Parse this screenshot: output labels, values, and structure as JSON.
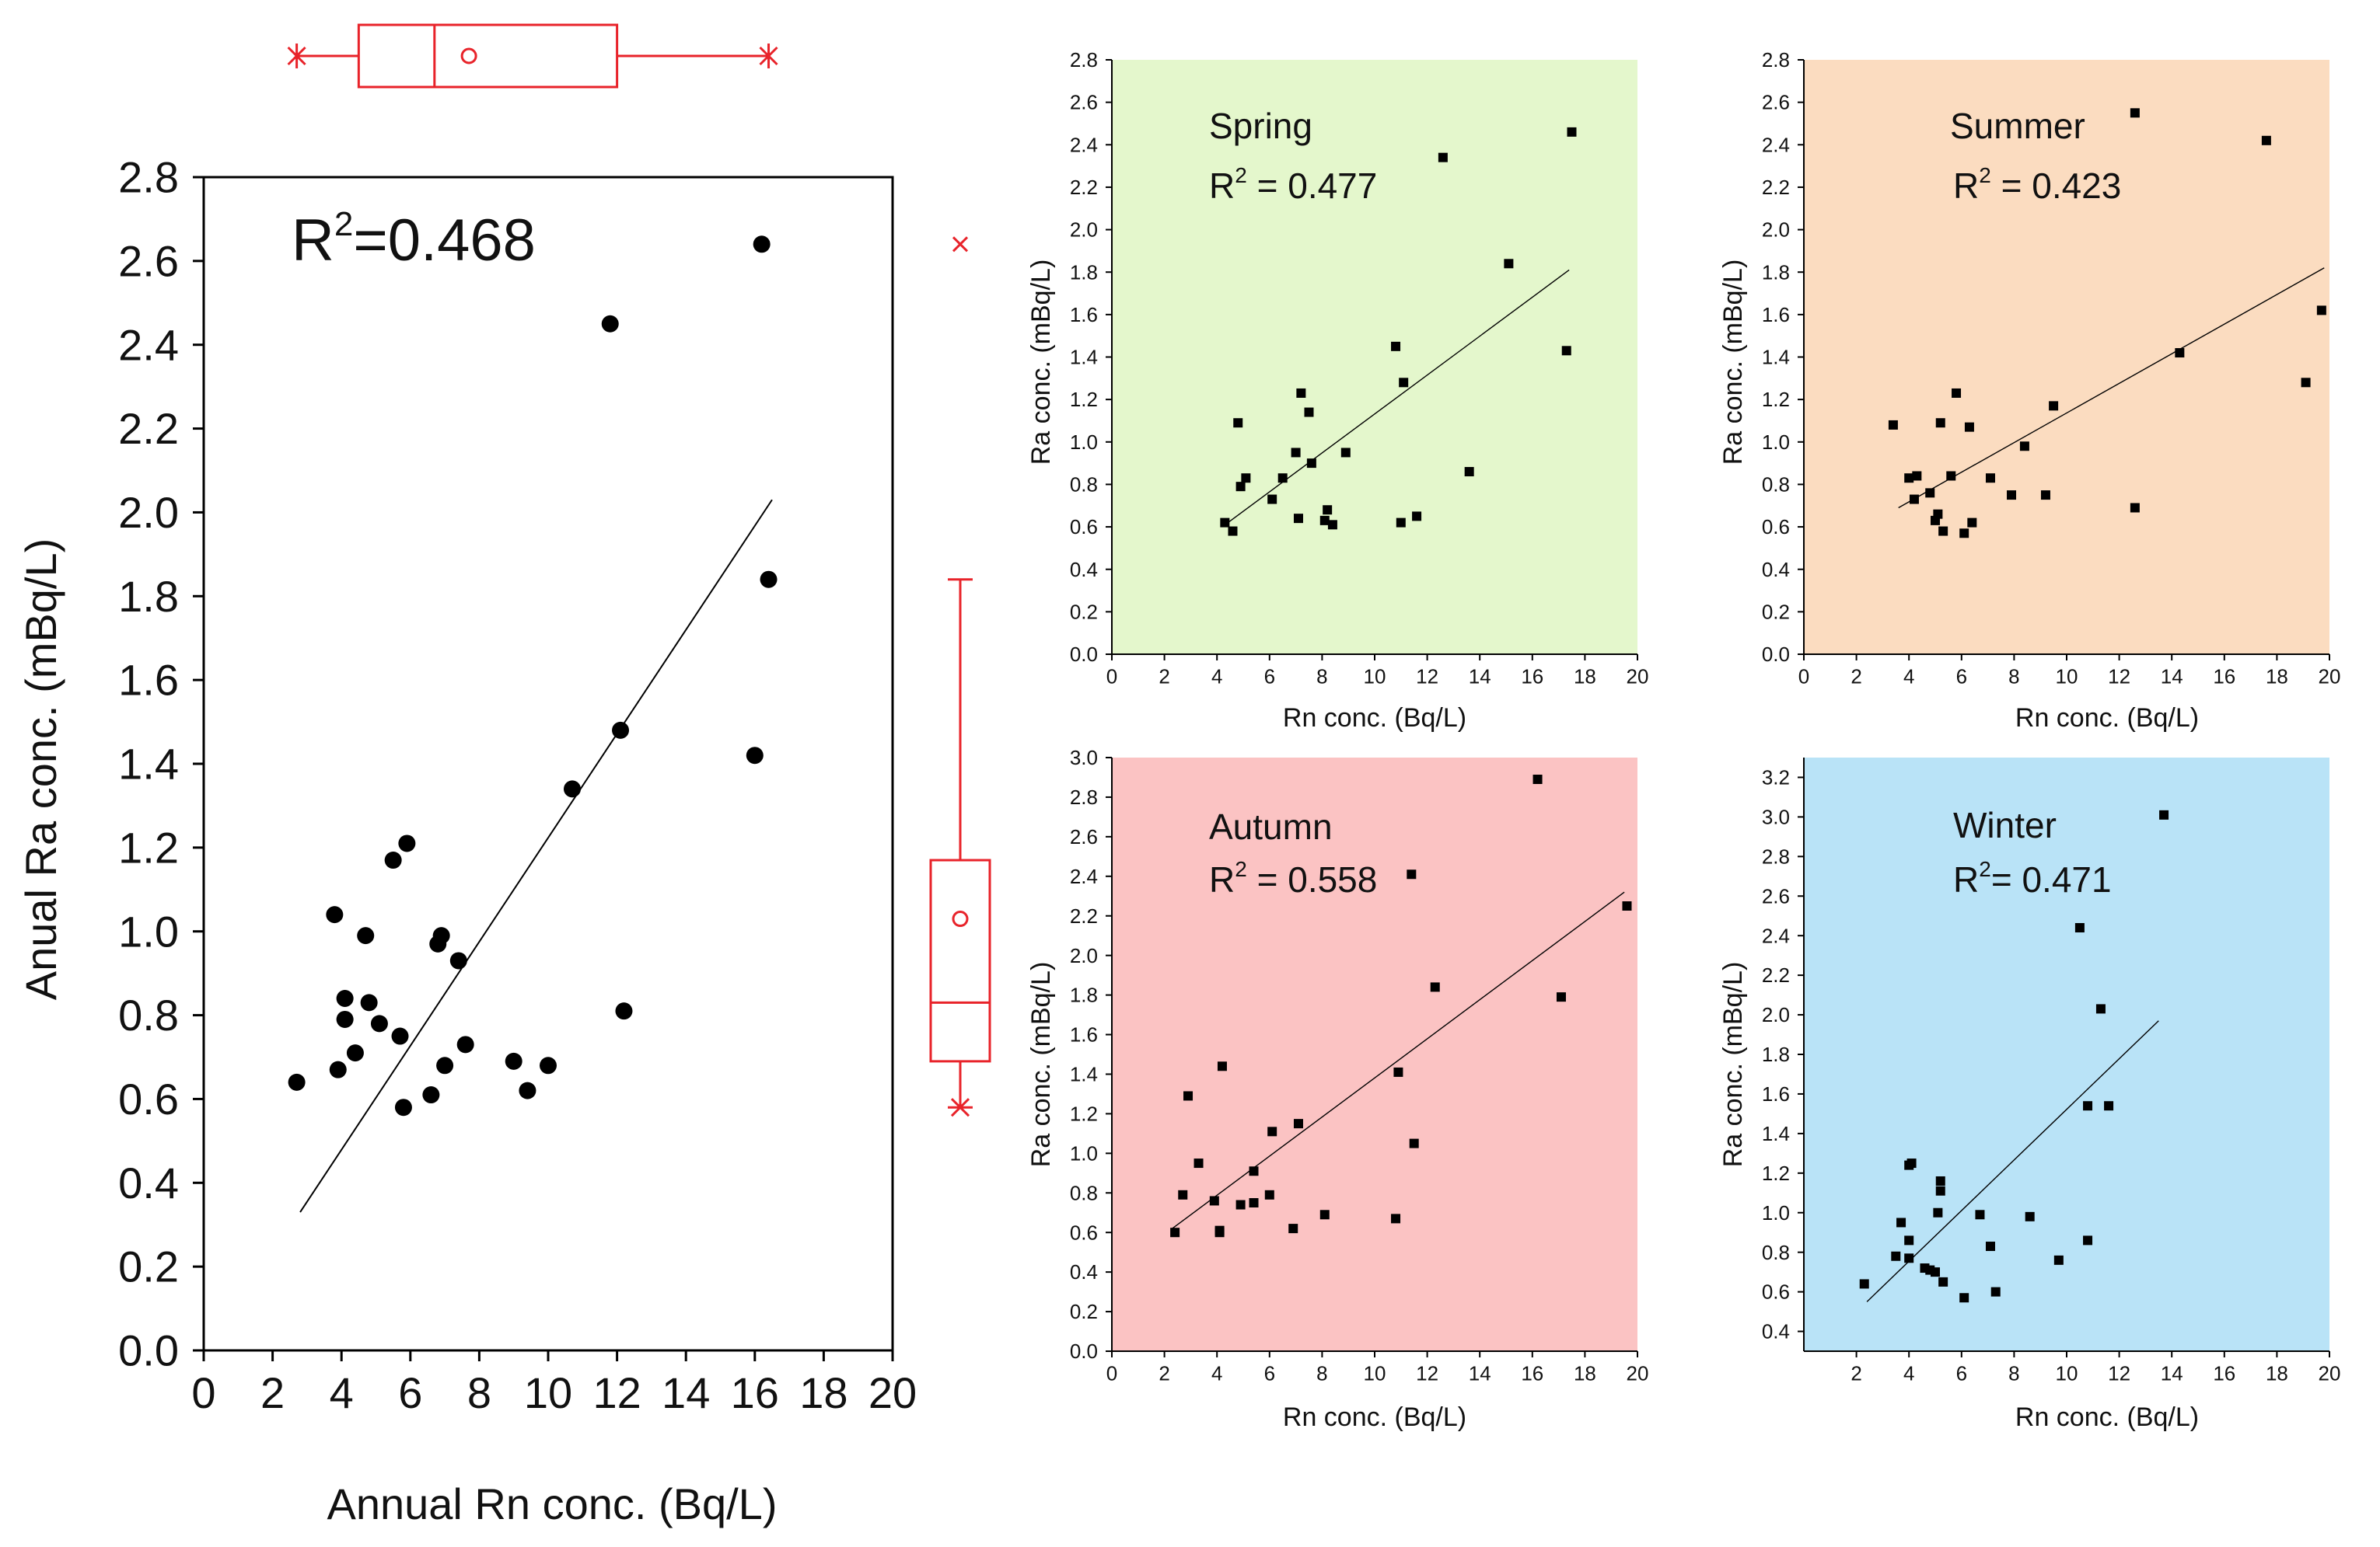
{
  "colors": {
    "box_red": "#e8232a",
    "spring_bg": "#e4f7cc",
    "summer_bg": "#fbdcc0",
    "autumn_bg": "#fbc3c3",
    "winter_bg": "#b9e3f7",
    "marker": "#000000"
  },
  "chart_data": [
    {
      "id": "annual",
      "type": "scatter",
      "xlabel": "Annual Rn conc. (Bq/L)",
      "ylabel": "Anual Ra conc. (mBq/L)",
      "xlim": [
        0,
        20
      ],
      "ylim": [
        0,
        2.8
      ],
      "xticks": [
        0,
        2,
        4,
        6,
        8,
        10,
        12,
        14,
        16,
        18,
        20
      ],
      "yticks": [
        0.0,
        0.2,
        0.4,
        0.6,
        0.8,
        1.0,
        1.2,
        1.4,
        1.6,
        1.8,
        2.0,
        2.2,
        2.4,
        2.6,
        2.8
      ],
      "ytick_labels": [
        "0.0",
        "0.2",
        "0.4",
        "0.6",
        "0.8",
        "1.0",
        "1.2",
        "1.4",
        "1.6",
        "1.8",
        "2.0",
        "2.2",
        "2.4",
        "2.6",
        "2.8"
      ],
      "annotation_main": "R",
      "annotation_sup": "2",
      "annotation_rest": "=0.468",
      "points": [
        [
          2.7,
          0.64
        ],
        [
          3.8,
          1.04
        ],
        [
          3.9,
          0.67
        ],
        [
          4.1,
          0.84
        ],
        [
          4.1,
          0.79
        ],
        [
          4.4,
          0.71
        ],
        [
          4.7,
          0.99
        ],
        [
          4.8,
          0.83
        ],
        [
          5.1,
          0.78
        ],
        [
          5.5,
          1.17
        ],
        [
          5.7,
          0.75
        ],
        [
          5.8,
          0.58
        ],
        [
          5.9,
          1.21
        ],
        [
          6.6,
          0.61
        ],
        [
          6.8,
          0.97
        ],
        [
          6.9,
          0.99
        ],
        [
          7.0,
          0.68
        ],
        [
          7.4,
          0.93
        ],
        [
          7.6,
          0.73
        ],
        [
          9.0,
          0.69
        ],
        [
          9.4,
          0.62
        ],
        [
          10.0,
          0.68
        ],
        [
          10.7,
          1.34
        ],
        [
          11.8,
          2.45
        ],
        [
          12.1,
          1.48
        ],
        [
          12.2,
          0.81
        ],
        [
          16.0,
          1.42
        ],
        [
          16.2,
          2.64
        ],
        [
          16.4,
          1.84
        ]
      ],
      "fit_line": [
        [
          2.8,
          0.33
        ],
        [
          16.5,
          2.03
        ]
      ]
    },
    {
      "id": "spring",
      "type": "scatter",
      "title": "Spring",
      "r2_prefix": "R",
      "r2_sup": "2",
      "r2_rest": " = 0.477",
      "xlabel": "Rn conc. (Bq/L)",
      "ylabel": "Ra conc. (mBq/L)",
      "xlim": [
        0,
        20
      ],
      "ylim": [
        0,
        2.8
      ],
      "xticks": [
        0,
        2,
        4,
        6,
        8,
        10,
        12,
        14,
        16,
        18,
        20
      ],
      "yticks": [
        0.0,
        0.2,
        0.4,
        0.6,
        0.8,
        1.0,
        1.2,
        1.4,
        1.6,
        1.8,
        2.0,
        2.2,
        2.4,
        2.6,
        2.8
      ],
      "ytick_labels": [
        "0.0",
        "0.2",
        "0.4",
        "0.6",
        "0.8",
        "1.0",
        "1.2",
        "1.4",
        "1.6",
        "1.8",
        "2.0",
        "2.2",
        "2.4",
        "2.6",
        "2.8"
      ],
      "points": [
        [
          4.3,
          0.62
        ],
        [
          4.6,
          0.58
        ],
        [
          4.8,
          1.09
        ],
        [
          4.9,
          0.79
        ],
        [
          5.1,
          0.83
        ],
        [
          6.1,
          0.73
        ],
        [
          6.5,
          0.83
        ],
        [
          7.0,
          0.95
        ],
        [
          7.1,
          0.64
        ],
        [
          7.2,
          1.23
        ],
        [
          7.5,
          1.14
        ],
        [
          7.6,
          0.9
        ],
        [
          8.1,
          0.63
        ],
        [
          8.2,
          0.68
        ],
        [
          8.4,
          0.61
        ],
        [
          8.9,
          0.95
        ],
        [
          10.8,
          1.45
        ],
        [
          11.0,
          0.62
        ],
        [
          11.1,
          1.28
        ],
        [
          11.6,
          0.65
        ],
        [
          13.6,
          0.86
        ],
        [
          12.6,
          2.34
        ],
        [
          15.1,
          1.84
        ],
        [
          17.3,
          1.43
        ],
        [
          17.5,
          2.46
        ]
      ],
      "fit_line": [
        [
          4.2,
          0.6
        ],
        [
          17.4,
          1.81
        ]
      ],
      "bg": "spring_bg"
    },
    {
      "id": "summer",
      "type": "scatter",
      "title": "Summer",
      "r2_prefix": "R",
      "r2_sup": "2",
      "r2_rest": " = 0.423",
      "xlabel": "Rn conc. (Bq/L)",
      "ylabel": "Ra conc. (mBq/L)",
      "xlim": [
        0,
        20
      ],
      "ylim": [
        0,
        2.8
      ],
      "xticks": [
        0,
        2,
        4,
        6,
        8,
        10,
        12,
        14,
        16,
        18,
        20
      ],
      "yticks": [
        0.0,
        0.2,
        0.4,
        0.6,
        0.8,
        1.0,
        1.2,
        1.4,
        1.6,
        1.8,
        2.0,
        2.2,
        2.4,
        2.6,
        2.8
      ],
      "ytick_labels": [
        "0.0",
        "0.2",
        "0.4",
        "0.6",
        "0.8",
        "1.0",
        "1.2",
        "1.4",
        "1.6",
        "1.8",
        "2.0",
        "2.2",
        "2.4",
        "2.6",
        "2.8"
      ],
      "points": [
        [
          3.4,
          1.08
        ],
        [
          4.0,
          0.83
        ],
        [
          4.2,
          0.73
        ],
        [
          4.3,
          0.84
        ],
        [
          4.8,
          0.76
        ],
        [
          5.0,
          0.63
        ],
        [
          5.1,
          0.66
        ],
        [
          5.2,
          1.09
        ],
        [
          5.3,
          0.58
        ],
        [
          5.6,
          0.84
        ],
        [
          5.8,
          1.23
        ],
        [
          6.1,
          0.57
        ],
        [
          6.3,
          1.07
        ],
        [
          6.4,
          0.62
        ],
        [
          7.1,
          0.83
        ],
        [
          7.9,
          0.75
        ],
        [
          8.4,
          0.98
        ],
        [
          9.2,
          0.75
        ],
        [
          9.5,
          1.17
        ],
        [
          12.6,
          0.69
        ],
        [
          12.6,
          2.55
        ],
        [
          14.3,
          1.42
        ],
        [
          17.6,
          2.42
        ],
        [
          19.1,
          1.28
        ],
        [
          19.7,
          1.62
        ]
      ],
      "fit_line": [
        [
          3.6,
          0.69
        ],
        [
          19.8,
          1.82
        ]
      ],
      "bg": "summer_bg"
    },
    {
      "id": "autumn",
      "type": "scatter",
      "title": "Autumn",
      "r2_prefix": "R",
      "r2_sup": "2",
      "r2_rest": " = 0.558",
      "xlabel": "Rn conc. (Bq/L)",
      "ylabel": "Ra conc. (mBq/L)",
      "xlim": [
        0,
        20
      ],
      "ylim": [
        0,
        3.0
      ],
      "xticks": [
        0,
        2,
        4,
        6,
        8,
        10,
        12,
        14,
        16,
        18,
        20
      ],
      "yticks": [
        0.0,
        0.2,
        0.4,
        0.6,
        0.8,
        1.0,
        1.2,
        1.4,
        1.6,
        1.8,
        2.0,
        2.2,
        2.4,
        2.6,
        2.8,
        3.0
      ],
      "ytick_labels": [
        "0.0",
        "0.2",
        "0.4",
        "0.6",
        "0.8",
        "1.0",
        "1.2",
        "1.4",
        "1.6",
        "1.8",
        "2.0",
        "2.2",
        "2.4",
        "2.6",
        "2.8",
        "3.0"
      ],
      "points": [
        [
          2.4,
          0.6
        ],
        [
          2.7,
          0.79
        ],
        [
          2.9,
          1.29
        ],
        [
          3.3,
          0.95
        ],
        [
          3.9,
          0.76
        ],
        [
          4.1,
          0.6
        ],
        [
          4.1,
          0.61
        ],
        [
          4.2,
          1.44
        ],
        [
          4.9,
          0.74
        ],
        [
          5.4,
          0.75
        ],
        [
          5.4,
          0.91
        ],
        [
          6.0,
          0.79
        ],
        [
          6.1,
          1.11
        ],
        [
          6.9,
          0.62
        ],
        [
          7.1,
          1.15
        ],
        [
          8.1,
          0.69
        ],
        [
          10.8,
          0.67
        ],
        [
          10.9,
          1.41
        ],
        [
          11.5,
          1.05
        ],
        [
          11.4,
          2.41
        ],
        [
          12.3,
          1.84
        ],
        [
          16.2,
          2.89
        ],
        [
          17.1,
          1.79
        ],
        [
          19.6,
          2.25
        ]
      ],
      "fit_line": [
        [
          2.3,
          0.62
        ],
        [
          19.5,
          2.32
        ]
      ],
      "bg": "autumn_bg"
    },
    {
      "id": "winter",
      "type": "scatter",
      "title": "Winter",
      "r2_prefix": "R",
      "r2_sup": "2",
      "r2_rest": "= 0.471",
      "xlabel": "Rn conc. (Bq/L)",
      "ylabel": "Ra conc. (mBq/L)",
      "xlim": [
        0,
        20
      ],
      "ylim": [
        0.3,
        3.3
      ],
      "xticks": [
        2,
        4,
        6,
        8,
        10,
        12,
        14,
        16,
        18,
        20
      ],
      "yticks": [
        0.4,
        0.6,
        0.8,
        1.0,
        1.2,
        1.4,
        1.6,
        1.8,
        2.0,
        2.2,
        2.4,
        2.6,
        2.8,
        3.0,
        3.2
      ],
      "ytick_labels": [
        "0.4",
        "0.6",
        "0.8",
        "1.0",
        "1.2",
        "1.4",
        "1.6",
        "1.8",
        "2.0",
        "2.2",
        "2.4",
        "2.6",
        "2.8",
        "3.0",
        "3.2"
      ],
      "points": [
        [
          2.3,
          0.64
        ],
        [
          3.5,
          0.78
        ],
        [
          3.7,
          0.95
        ],
        [
          4.0,
          0.77
        ],
        [
          4.0,
          0.86
        ],
        [
          4.0,
          1.24
        ],
        [
          4.1,
          1.25
        ],
        [
          4.6,
          0.72
        ],
        [
          4.8,
          0.71
        ],
        [
          5.0,
          0.7
        ],
        [
          5.1,
          1.0
        ],
        [
          5.2,
          1.16
        ],
        [
          5.2,
          1.11
        ],
        [
          5.3,
          0.65
        ],
        [
          6.1,
          0.57
        ],
        [
          6.7,
          0.99
        ],
        [
          7.1,
          0.83
        ],
        [
          7.3,
          0.6
        ],
        [
          8.6,
          0.98
        ],
        [
          9.7,
          0.76
        ],
        [
          10.5,
          2.44
        ],
        [
          10.8,
          0.86
        ],
        [
          10.8,
          1.54
        ],
        [
          11.3,
          2.03
        ],
        [
          11.6,
          1.54
        ],
        [
          13.7,
          3.01
        ]
      ],
      "fit_line": [
        [
          2.4,
          0.55
        ],
        [
          13.5,
          1.97
        ]
      ],
      "bg": "winter_bg"
    }
  ],
  "boxplots": {
    "horizontal": {
      "min": 2.7,
      "q1": 4.5,
      "median": 6.7,
      "mean": 7.7,
      "q3": 12.0,
      "max": 16.4
    },
    "vertical": {
      "min": 0.58,
      "q1": 0.69,
      "median": 0.83,
      "mean": 1.03,
      "q3": 1.17,
      "whisker_top": 1.84,
      "outlier": 2.64
    }
  }
}
